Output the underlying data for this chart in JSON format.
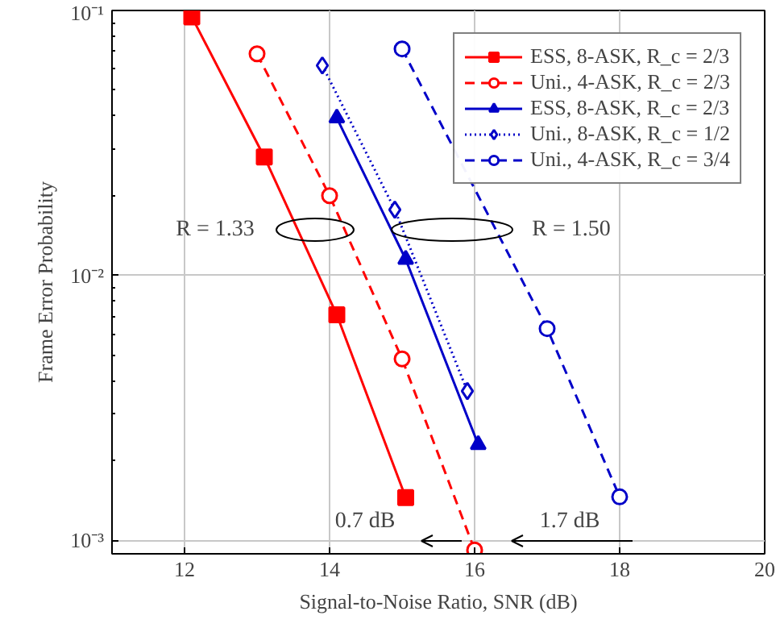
{
  "chart_data": {
    "type": "line",
    "xlabel": "Signal-to-Noise Ratio, SNR (dB)",
    "ylabel": "Frame Error Probability",
    "log": "y",
    "xlim": [
      11,
      20
    ],
    "ylim": [
      0.00089,
      0.1
    ],
    "xticks": [
      12,
      14,
      16,
      18,
      20
    ],
    "yticks": [
      {
        "value": 0.001,
        "label": "10⁻³"
      },
      {
        "value": 0.01,
        "label": "10⁻²"
      },
      {
        "value": 0.1,
        "label": "10⁻¹"
      }
    ],
    "grid": true,
    "legend": "top right",
    "series": [
      {
        "name": "ESS, 8-ASK, R_c = 2/3",
        "color": "#ff0000",
        "marker": "square",
        "line_style": "solid",
        "x": [
          12.1,
          13.1,
          14.1,
          15.05
        ],
        "values": [
          0.0946,
          0.028,
          0.0071,
          0.00145
        ]
      },
      {
        "name": "Uni., 4-ASK, R_c = 2/3",
        "color": "#ff0000",
        "marker": "circle",
        "line_style": "dashed",
        "x": [
          13,
          14,
          15,
          16
        ],
        "values": [
          0.0686,
          0.02,
          0.00484,
          0.00092
        ]
      },
      {
        "name": "ESS, 8-ASK, R_c = 2/3",
        "color": "#0000c8",
        "marker": "triangle",
        "line_style": "solid",
        "x": [
          14.1,
          15.05,
          16.05
        ],
        "values": [
          0.0393,
          0.0115,
          0.0023
        ]
      },
      {
        "name": "Uni., 8-ASK, R_c = 1/2",
        "color": "#0000c8",
        "marker": "diamond",
        "line_style": "dotted",
        "x": [
          13.9,
          14.9,
          15.9
        ],
        "values": [
          0.062,
          0.0177,
          0.00366
        ]
      },
      {
        "name": "Uni., 4-ASK, R_c = 3/4",
        "color": "#0000c8",
        "marker": "circle",
        "line_style": "dashed",
        "x": [
          15,
          17,
          18
        ],
        "values": [
          0.0716,
          0.0063,
          0.00146
        ]
      }
    ],
    "annotations": [
      "R = 1.33",
      "R = 1.50",
      "0.7 dB",
      "1.7 dB"
    ]
  }
}
